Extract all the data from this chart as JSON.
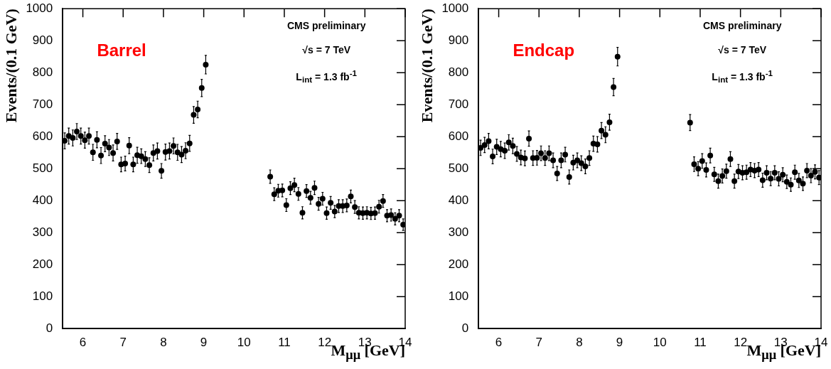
{
  "chart_data": [
    {
      "type": "scatter",
      "title": "Barrel",
      "xlabel": "M$_{μμ}$ [GeV]",
      "ylabel": "Events/(0.1 GeV)",
      "annotations": [
        "CMS preliminary",
        "√s = 7 TeV",
        "L$_{int}$ = 1.3 fb$^{-1}$"
      ],
      "marker": "circle",
      "xlim": [
        5.5,
        14
      ],
      "xticks": [
        6,
        7,
        8,
        9,
        10,
        11,
        12,
        13,
        14
      ],
      "ylim": [
        0,
        1000
      ],
      "yticks": [
        0,
        100,
        200,
        300,
        400,
        500,
        600,
        700,
        800,
        900,
        1000
      ],
      "series": [
        {
          "color": "#000000",
          "x": [
            5.55,
            5.65,
            5.75,
            5.85,
            5.95,
            6.05,
            6.15,
            6.25,
            6.35,
            6.45,
            6.55,
            6.65,
            6.75,
            6.85,
            6.95,
            7.05,
            7.15,
            7.25,
            7.35,
            7.45,
            7.55,
            7.65,
            7.75,
            7.85,
            7.95,
            8.05,
            8.15,
            8.25,
            8.35,
            8.45,
            8.55,
            8.65,
            8.75,
            8.85,
            8.95,
            9.05,
            10.65,
            10.75,
            10.85,
            10.95,
            11.05,
            11.15,
            11.25,
            11.35,
            11.45,
            11.55,
            11.65,
            11.75,
            11.85,
            11.95,
            12.05,
            12.15,
            12.25,
            12.35,
            12.45,
            12.55,
            12.65,
            12.75,
            12.85,
            12.95,
            13.05,
            13.15,
            13.25,
            13.35,
            13.45,
            13.55,
            13.65,
            13.75,
            13.85,
            13.95
          ],
          "values": [
            587,
            602,
            596,
            616,
            602,
            589,
            602,
            551,
            590,
            541,
            578,
            566,
            549,
            585,
            513,
            516,
            572,
            513,
            542,
            539,
            530,
            511,
            549,
            555,
            493,
            552,
            555,
            571,
            551,
            544,
            556,
            579,
            668,
            685,
            752,
            825,
            475,
            420,
            431,
            432,
            386,
            439,
            449,
            421,
            362,
            430,
            409,
            440,
            390,
            406,
            361,
            393,
            366,
            383,
            383,
            385,
            413,
            380,
            362,
            361,
            362,
            360,
            361,
            381,
            399,
            353,
            355,
            343,
            353,
            325
          ],
          "errors": [
            25,
            25,
            25,
            25,
            25,
            25,
            25,
            25,
            25,
            25,
            25,
            25,
            25,
            25,
            23,
            23,
            25,
            23,
            25,
            23,
            23,
            23,
            25,
            25,
            23,
            25,
            25,
            25,
            25,
            25,
            25,
            25,
            26,
            26,
            27,
            29,
            21,
            20,
            20,
            20,
            20,
            20,
            21,
            20,
            19,
            20,
            20,
            21,
            20,
            20,
            19,
            20,
            19,
            20,
            20,
            20,
            20,
            20,
            19,
            19,
            19,
            19,
            19,
            20,
            20,
            19,
            19,
            19,
            19,
            18
          ]
        }
      ]
    },
    {
      "type": "scatter",
      "title": "Endcap",
      "xlabel": "M$_{μμ}$ [GeV]",
      "ylabel": "Events/(0.1 GeV)",
      "annotations": [
        "CMS preliminary",
        "√s = 7 TeV",
        "L$_{int}$ = 1.3 fb$^{-1}$"
      ],
      "marker": "circle",
      "xlim": [
        5.5,
        14
      ],
      "xticks": [
        6,
        7,
        8,
        9,
        10,
        11,
        12,
        13,
        14
      ],
      "ylim": [
        0,
        1000
      ],
      "yticks": [
        0,
        100,
        200,
        300,
        400,
        500,
        600,
        700,
        800,
        900,
        1000
      ],
      "series": [
        {
          "color": "#000000",
          "x": [
            5.55,
            5.65,
            5.75,
            5.85,
            5.95,
            6.05,
            6.15,
            6.25,
            6.35,
            6.45,
            6.55,
            6.65,
            6.75,
            6.85,
            6.95,
            7.05,
            7.15,
            7.25,
            7.35,
            7.45,
            7.55,
            7.65,
            7.75,
            7.85,
            7.95,
            8.05,
            8.15,
            8.25,
            8.35,
            8.45,
            8.55,
            8.65,
            8.75,
            8.85,
            8.95,
            10.75,
            10.85,
            10.95,
            11.05,
            11.15,
            11.25,
            11.35,
            11.45,
            11.55,
            11.65,
            11.75,
            11.85,
            11.95,
            12.05,
            12.15,
            12.25,
            12.35,
            12.45,
            12.55,
            12.65,
            12.75,
            12.85,
            12.95,
            13.05,
            13.15,
            13.25,
            13.35,
            13.45,
            13.55,
            13.65,
            13.75,
            13.85,
            13.95
          ],
          "values": [
            565,
            574,
            586,
            538,
            568,
            561,
            556,
            582,
            571,
            546,
            535,
            532,
            594,
            533,
            534,
            548,
            533,
            548,
            526,
            485,
            526,
            544,
            474,
            519,
            526,
            517,
            507,
            533,
            578,
            576,
            619,
            606,
            645,
            755,
            850,
            644,
            514,
            500,
            524,
            496,
            541,
            482,
            461,
            477,
            492,
            530,
            461,
            491,
            487,
            489,
            497,
            494,
            497,
            464,
            487,
            469,
            487,
            468,
            481,
            459,
            450,
            489,
            463,
            453,
            494,
            478,
            490,
            472
          ],
          "errors": [
            24,
            24,
            24,
            23,
            24,
            24,
            24,
            24,
            24,
            23,
            23,
            23,
            24,
            23,
            23,
            23,
            23,
            23,
            23,
            22,
            23,
            23,
            22,
            23,
            23,
            23,
            23,
            23,
            24,
            24,
            25,
            25,
            25,
            27,
            29,
            25,
            23,
            22,
            23,
            22,
            23,
            22,
            22,
            22,
            22,
            23,
            22,
            22,
            22,
            22,
            22,
            22,
            22,
            22,
            22,
            22,
            22,
            22,
            22,
            21,
            21,
            22,
            22,
            21,
            22,
            22,
            22,
            22
          ]
        }
      ]
    }
  ]
}
